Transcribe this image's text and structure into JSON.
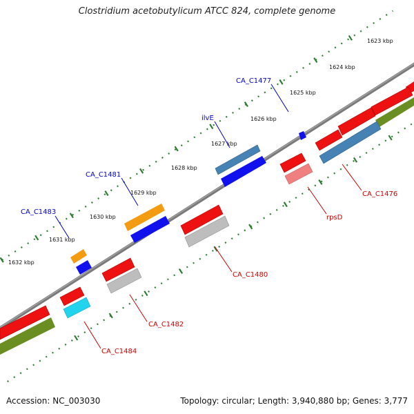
{
  "title": "Clostridium acetobutylicum ATCC 824, complete genome",
  "accession": "Accession: NC_003030",
  "topology": "Topology: circular; Length: 3,940,880 bp; Genes: 3,777",
  "tick_labels": [
    "1623 kbp",
    "1624 kbp",
    "1625 kbp",
    "1626 kbp",
    "1627 kbp",
    "1628 kbp",
    "1629 kbp",
    "1630 kbp",
    "1631 kbp",
    "1632 kbp"
  ],
  "gene_labels": {
    "CA_C1477": "CA_C1477",
    "ilvE": "ilvE",
    "CA_C1481": "CA_C1481",
    "CA_C1483": "CA_C1483",
    "CA_C1476": "CA_C1476",
    "rpsD": "rpsD",
    "CA_C1480": "CA_C1480",
    "CA_C1482": "CA_C1482",
    "CA_C1484": "CA_C1484"
  },
  "colors": {
    "backbone": "#7a7a7a",
    "tick": "#2e7d32",
    "forward_label": "#0000cc",
    "reverse_label": "#cc0000",
    "red": "#ee1111",
    "blue": "#1111ee",
    "steel": "#4682b4",
    "orange": "#f39c12",
    "gray": "#bdbdbd",
    "pink": "#f08080",
    "cyan": "#22d3ee",
    "olive": "#6b8e23"
  }
}
